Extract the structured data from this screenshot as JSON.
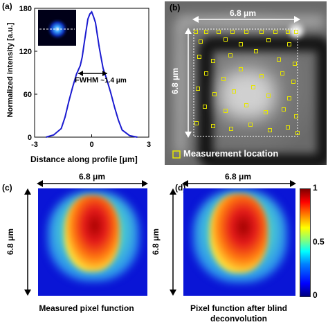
{
  "panel_a": {
    "label": "(a)",
    "ylabel": "Normalized intensity [a.u.]",
    "xlabel": "Distance along profile [μm]",
    "annotation": "FWHM ~1.4 μm",
    "fwhm_text": "FWHM",
    "fwhm_value": "~1.4 μm"
  },
  "panel_b": {
    "label": "(b)",
    "width_label": "6.8 μm",
    "height_label": "6.8 μm",
    "legend_label": "Measurement location"
  },
  "panel_c": {
    "label": "(c)",
    "width_label": "6.8 μm",
    "height_label": "6.8 μm",
    "caption": "Measured pixel function"
  },
  "panel_d": {
    "label": "(d)",
    "width_label": "6.8 μm",
    "height_label": "6.8 μm",
    "caption_line1": "Pixel function after blind",
    "caption_line2": "deconvolution"
  },
  "colorbar": {
    "ticks": [
      "1",
      "0.5",
      "0"
    ],
    "tick_values": [
      1,
      0.5,
      0
    ]
  },
  "chart_data": [
    {
      "type": "line",
      "xlabel": "Distance along profile [μm]",
      "ylabel": "Normalized intensity [a.u.]",
      "xlim": [
        -3,
        3
      ],
      "ylim": [
        0,
        180
      ],
      "xticks": [
        -3,
        0,
        3
      ],
      "yticks": [
        0,
        60,
        120,
        180
      ],
      "x": [
        -2.4,
        -2.0,
        -1.6,
        -1.4,
        -1.2,
        -1.0,
        -0.8,
        -0.6,
        -0.5,
        -0.4,
        -0.3,
        -0.2,
        -0.1,
        0.0,
        0.1,
        0.2,
        0.3,
        0.4,
        0.5,
        0.6,
        0.8,
        1.0,
        1.2,
        1.4,
        1.6,
        2.0,
        2.4
      ],
      "y": [
        0,
        3,
        12,
        28,
        50,
        70,
        88,
        100,
        112,
        130,
        148,
        165,
        172,
        175,
        168,
        160,
        142,
        125,
        110,
        96,
        80,
        62,
        42,
        24,
        10,
        2,
        0
      ],
      "color": "#1a1ad0"
    }
  ]
}
